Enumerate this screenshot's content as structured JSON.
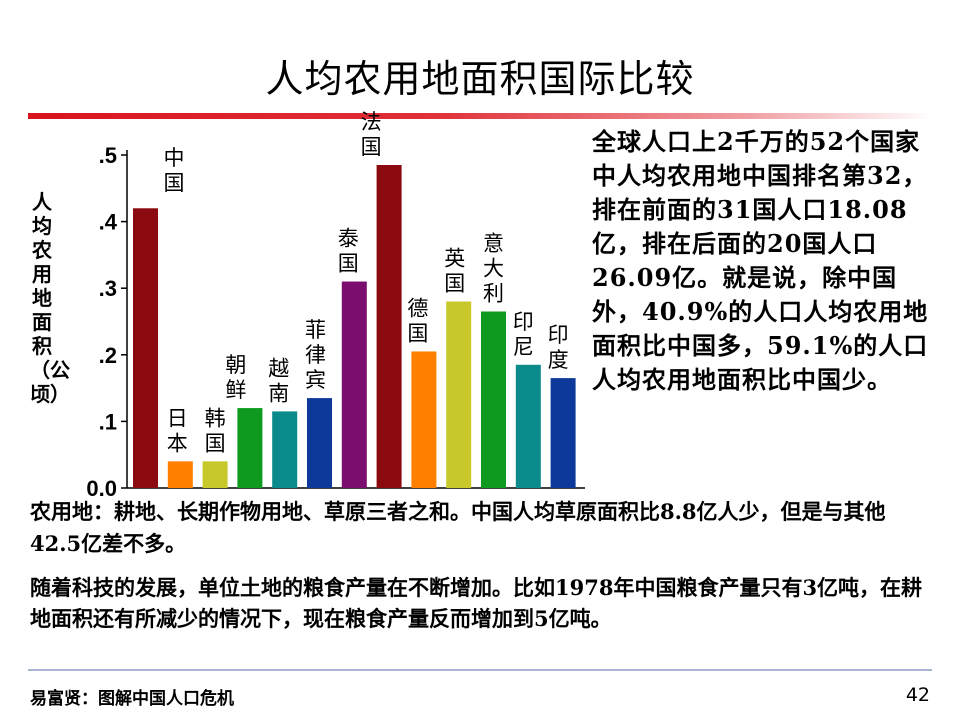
{
  "title": "人均农用地面积国际比较",
  "chart_data": {
    "type": "bar",
    "ylabel": "人均农用地面积（公顷）",
    "ylim": [
      0,
      0.5
    ],
    "yticks": [
      0,
      0.1,
      0.2,
      0.3,
      0.4,
      0.5
    ],
    "ytick_labels": [
      "0.0",
      ".1",
      ".2",
      ".3",
      ".4",
      ".5"
    ],
    "categories": [
      "中国",
      "日本",
      "韩国",
      "朝鲜",
      "越南",
      "菲律宾",
      "泰国",
      "法国",
      "德国",
      "英国",
      "意大利",
      "印尼",
      "印度"
    ],
    "values": [
      0.42,
      0.04,
      0.04,
      0.12,
      0.115,
      0.135,
      0.31,
      0.485,
      0.205,
      0.28,
      0.265,
      0.185,
      0.165
    ],
    "colors": [
      "#8b0a10",
      "#ff7f00",
      "#c8c82a",
      "#0e9a1e",
      "#0a8a8a",
      "#0d3a9a",
      "#7b0d6e",
      "#8b0a10",
      "#ff7f00",
      "#c8c82a",
      "#0e9a1e",
      "#0a8a8a",
      "#0d3a9a"
    ],
    "grid": false
  },
  "side_text": "全球人口上2千万的52个国家中人均农用地中国排名第32，排在前面的31国人口18.08亿，排在后面的20国人口26.09亿。就是说，除中国外，40.9%的人口人均农用地面积比中国多，59.1%的人口人均农用地面积比中国少。",
  "note1": "农用地：耕地、长期作物用地、草原三者之和。中国人均草原面积比8.8亿人少，但是与其他42.5亿差不多。",
  "note2": "随着科技的发展，单位土地的粮食产量在不断增加。比如1978年中国粮食产量只有3亿吨，在耕地面积还有所减少的情况下，现在粮食产量反而增加到5亿吨。",
  "footer": "易富贤：图解中国人口危机",
  "page_number": "42"
}
